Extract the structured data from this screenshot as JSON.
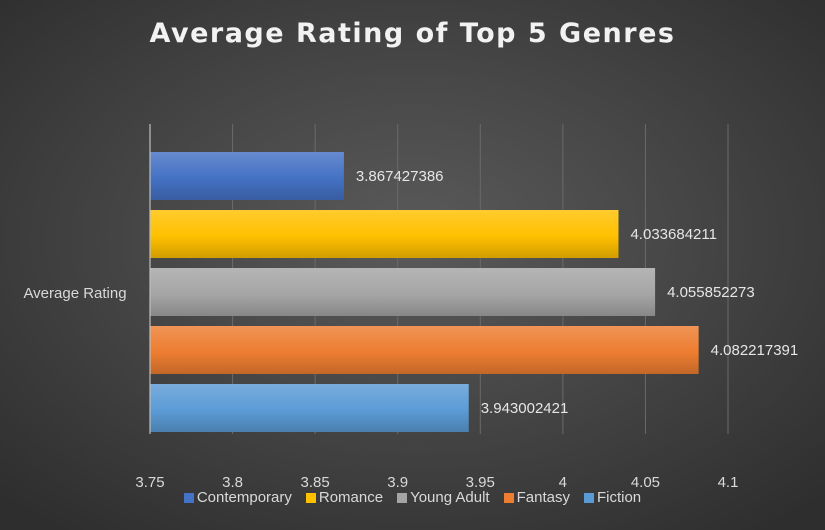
{
  "chart_data": {
    "type": "bar",
    "orientation": "horizontal",
    "title": "Average Rating of Top 5 Genres",
    "categories": [
      "Average Rating"
    ],
    "series": [
      {
        "name": "Contemporary",
        "values": [
          3.867427386
        ],
        "label": "3.867427386",
        "color": "#4472c4"
      },
      {
        "name": "Romance",
        "values": [
          4.033684211
        ],
        "label": "4.033684211",
        "color": "#ffc000"
      },
      {
        "name": "Young Adult",
        "values": [
          4.055852273
        ],
        "label": "4.055852273",
        "color": "#a5a5a5"
      },
      {
        "name": "Fantasy",
        "values": [
          4.082217391
        ],
        "label": "4.082217391",
        "color": "#ed7d31"
      },
      {
        "name": "Fiction",
        "values": [
          3.943002421
        ],
        "label": "3.943002421",
        "color": "#5b9bd5"
      }
    ],
    "xlim": [
      3.75,
      4.1
    ],
    "xticks": [
      3.75,
      3.8,
      3.85,
      3.9,
      3.95,
      4,
      4.05,
      4.1
    ],
    "xtick_labels": [
      "3.75",
      "3.8",
      "3.85",
      "3.9",
      "3.95",
      "4",
      "4.05",
      "4.1"
    ],
    "grid": true,
    "legend_position": "bottom"
  }
}
